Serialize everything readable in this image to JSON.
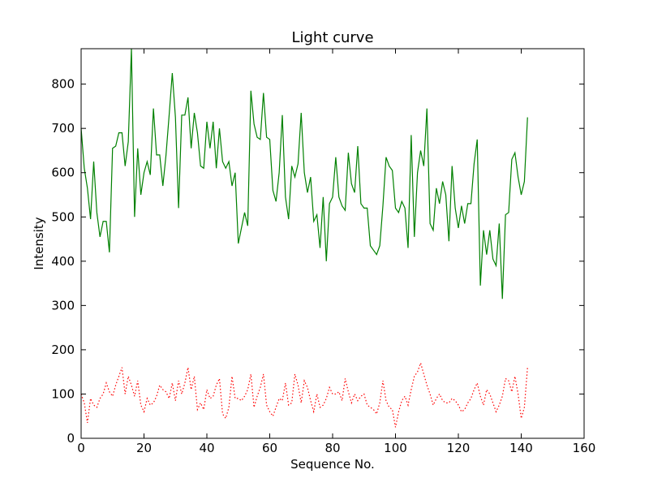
{
  "chart_data": {
    "type": "line",
    "title": "Light curve",
    "xlabel": "Sequence No.",
    "ylabel": "Intensity",
    "xlim": [
      0,
      160
    ],
    "ylim": [
      0,
      880
    ],
    "xticks": [
      0,
      20,
      40,
      60,
      80,
      100,
      120,
      140,
      160
    ],
    "yticks": [
      0,
      100,
      200,
      300,
      400,
      500,
      600,
      700,
      800
    ],
    "grid": false,
    "legend": "none",
    "series": [
      {
        "color": "#008000",
        "style": "solid",
        "x": [
          0,
          1,
          2,
          3,
          4,
          5,
          6,
          7,
          8,
          9,
          10,
          11,
          12,
          13,
          14,
          15,
          16,
          17,
          18,
          19,
          20,
          21,
          22,
          23,
          24,
          25,
          26,
          27,
          28,
          29,
          30,
          31,
          32,
          33,
          34,
          35,
          36,
          37,
          38,
          39,
          40,
          41,
          42,
          43,
          44,
          45,
          46,
          47,
          48,
          49,
          50,
          51,
          52,
          53,
          54,
          55,
          56,
          57,
          58,
          59,
          60,
          61,
          62,
          63,
          64,
          65,
          66,
          67,
          68,
          69,
          70,
          71,
          72,
          73,
          74,
          75,
          76,
          77,
          78,
          79,
          80,
          81,
          82,
          83,
          84,
          85,
          86,
          87,
          88,
          89,
          90,
          91,
          92,
          93,
          94,
          95,
          96,
          97,
          98,
          99,
          100,
          101,
          102,
          103,
          104,
          105,
          106,
          107,
          108,
          109,
          110,
          111,
          112,
          113,
          114,
          115,
          116,
          117,
          118,
          119,
          120,
          121,
          122,
          123,
          124,
          125,
          126,
          127,
          128,
          129,
          130,
          131,
          132,
          133,
          134,
          135,
          136,
          137,
          138,
          139,
          140,
          141,
          142
        ],
        "y": [
          700,
          610,
          565,
          495,
          625,
          510,
          455,
          490,
          490,
          420,
          655,
          660,
          690,
          690,
          615,
          670,
          880,
          500,
          655,
          550,
          600,
          625,
          595,
          745,
          640,
          640,
          570,
          640,
          730,
          825,
          725,
          520,
          730,
          730,
          770,
          655,
          735,
          690,
          615,
          610,
          715,
          655,
          715,
          610,
          700,
          625,
          610,
          625,
          570,
          600,
          440,
          475,
          510,
          480,
          785,
          710,
          680,
          675,
          780,
          680,
          675,
          560,
          535,
          600,
          730,
          545,
          495,
          615,
          590,
          620,
          735,
          600,
          555,
          590,
          490,
          505,
          430,
          545,
          400,
          530,
          545,
          635,
          545,
          525,
          515,
          645,
          575,
          555,
          660,
          530,
          520,
          520,
          435,
          425,
          415,
          435,
          525,
          635,
          615,
          605,
          520,
          510,
          535,
          520,
          430,
          685,
          455,
          600,
          650,
          615,
          745,
          485,
          470,
          565,
          530,
          580,
          550,
          445,
          615,
          520,
          475,
          525,
          485,
          530,
          530,
          620,
          675,
          345,
          470,
          415,
          470,
          405,
          390,
          485,
          315,
          505,
          510,
          630,
          645,
          590,
          550,
          580,
          725
        ]
      },
      {
        "color": "#ff0000",
        "style": "dotted",
        "x": [
          0,
          1,
          2,
          3,
          4,
          5,
          6,
          7,
          8,
          9,
          10,
          11,
          12,
          13,
          14,
          15,
          16,
          17,
          18,
          19,
          20,
          21,
          22,
          23,
          24,
          25,
          26,
          27,
          28,
          29,
          30,
          31,
          32,
          33,
          34,
          35,
          36,
          37,
          38,
          39,
          40,
          41,
          42,
          43,
          44,
          45,
          46,
          47,
          48,
          49,
          50,
          51,
          52,
          53,
          54,
          55,
          56,
          57,
          58,
          59,
          60,
          61,
          62,
          63,
          64,
          65,
          66,
          67,
          68,
          69,
          70,
          71,
          72,
          73,
          74,
          75,
          76,
          77,
          78,
          79,
          80,
          81,
          82,
          83,
          84,
          85,
          86,
          87,
          88,
          89,
          90,
          91,
          92,
          93,
          94,
          95,
          96,
          97,
          98,
          99,
          100,
          101,
          102,
          103,
          104,
          105,
          106,
          107,
          108,
          109,
          110,
          111,
          112,
          113,
          114,
          115,
          116,
          117,
          118,
          119,
          120,
          121,
          122,
          123,
          124,
          125,
          126,
          127,
          128,
          129,
          130,
          131,
          132,
          133,
          134,
          135,
          136,
          137,
          138,
          139,
          140,
          141,
          142
        ],
        "y": [
          100,
          80,
          35,
          90,
          75,
          70,
          90,
          100,
          125,
          105,
          95,
          120,
          140,
          160,
          100,
          140,
          120,
          95,
          130,
          75,
          60,
          90,
          75,
          80,
          95,
          120,
          110,
          105,
          90,
          125,
          85,
          130,
          100,
          125,
          160,
          110,
          140,
          65,
          80,
          65,
          110,
          90,
          95,
          120,
          135,
          55,
          45,
          70,
          140,
          90,
          90,
          85,
          95,
          110,
          145,
          70,
          95,
          115,
          145,
          75,
          60,
          50,
          70,
          90,
          85,
          125,
          75,
          80,
          145,
          120,
          80,
          130,
          115,
          85,
          60,
          100,
          70,
          75,
          90,
          115,
          100,
          100,
          105,
          85,
          135,
          105,
          80,
          100,
          85,
          95,
          100,
          75,
          70,
          65,
          55,
          80,
          130,
          85,
          70,
          65,
          25,
          60,
          85,
          95,
          75,
          110,
          140,
          150,
          170,
          145,
          120,
          100,
          75,
          90,
          100,
          85,
          80,
          80,
          90,
          85,
          75,
          60,
          65,
          80,
          90,
          110,
          125,
          95,
          75,
          110,
          100,
          80,
          60,
          75,
          95,
          135,
          130,
          105,
          140,
          100,
          45,
          70,
          160
        ]
      }
    ]
  }
}
